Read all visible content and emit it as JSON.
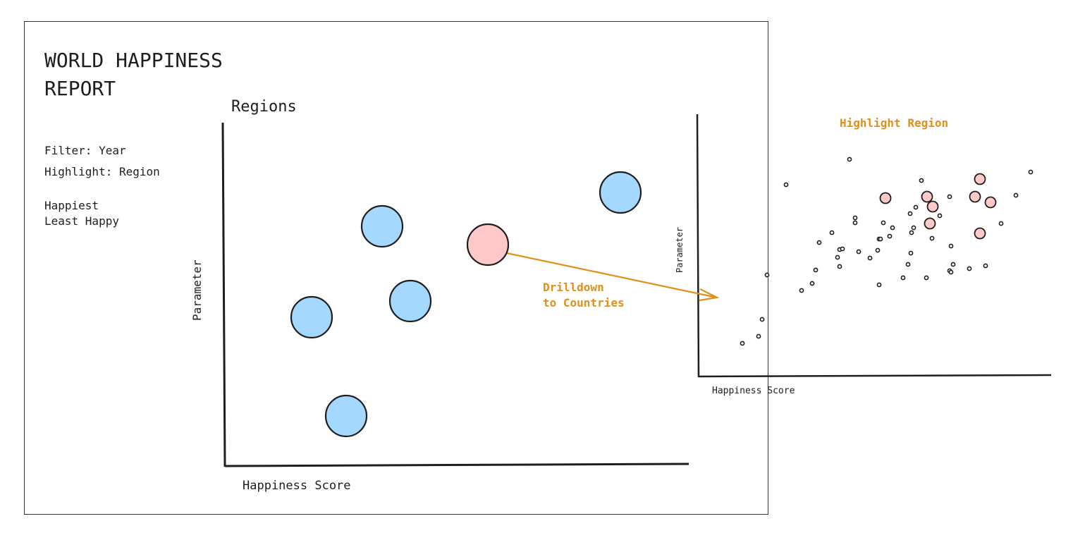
{
  "report": {
    "title_line1": "WORLD HAPPINESS",
    "title_line2": "REPORT",
    "filter_label": "Filter:   Year",
    "highlight_label": "Highlight: Region",
    "happiest": "Happiest",
    "least_happy": "Least Happy"
  },
  "regions_chart": {
    "title": "Regions",
    "ylabel": "Parameter",
    "xlabel": "Happiness Score",
    "bubble_count": 6,
    "highlighted_count": 1
  },
  "annotation": {
    "line1": "Drilldown",
    "line2": "to Countries"
  },
  "countries_chart": {
    "title": "Highlight Region",
    "ylabel": "Parameter",
    "xlabel": "Happiness Score"
  },
  "colors": {
    "blue": "#a5d8ff",
    "pink": "#ffc9c9",
    "accent": "#e0901a",
    "stroke": "#1e1e1e"
  }
}
